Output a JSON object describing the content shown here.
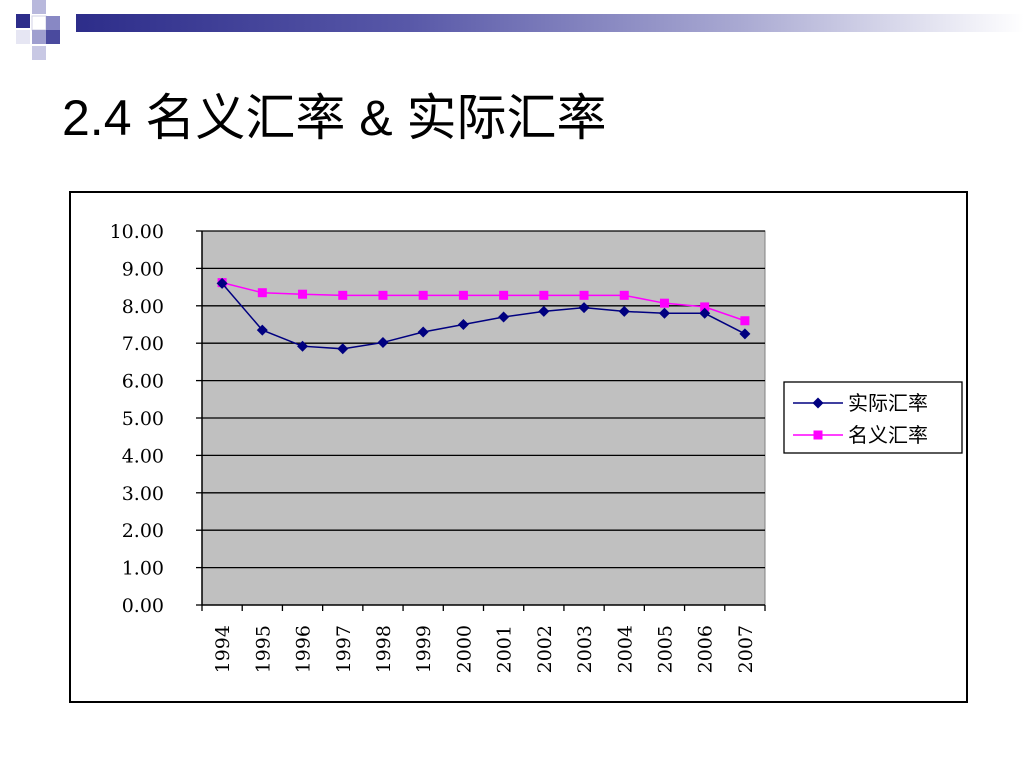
{
  "slide": {
    "title": "2.4 名义汇率 & 实际汇率"
  },
  "theme": {
    "bar_start": "#2d2d8a",
    "bar_end": "#ffffff",
    "plot_background": "#c0c0c0",
    "real_color": "#000080",
    "nominal_color": "#ff00ff"
  },
  "chart_data": {
    "type": "line",
    "title": "",
    "xlabel": "",
    "ylabel": "",
    "categories": [
      "1994",
      "1995",
      "1996",
      "1997",
      "1998",
      "1999",
      "2000",
      "2001",
      "2002",
      "2003",
      "2004",
      "2005",
      "2006",
      "2007"
    ],
    "ylim": [
      0,
      10
    ],
    "yticks": [
      "0.00",
      "1.00",
      "2.00",
      "3.00",
      "4.00",
      "5.00",
      "6.00",
      "7.00",
      "8.00",
      "9.00",
      "10.00"
    ],
    "grid": true,
    "legend_position": "right",
    "series": [
      {
        "name": "实际汇率",
        "marker": "diamond",
        "color": "#000080",
        "values": [
          8.6,
          7.35,
          6.92,
          6.85,
          7.02,
          7.3,
          7.5,
          7.7,
          7.85,
          7.95,
          7.85,
          7.8,
          7.8,
          7.25
        ]
      },
      {
        "name": "名义汇率",
        "marker": "square",
        "color": "#ff00ff",
        "values": [
          8.62,
          8.35,
          8.31,
          8.28,
          8.28,
          8.28,
          8.28,
          8.28,
          8.28,
          8.28,
          8.28,
          8.07,
          7.97,
          7.6
        ]
      }
    ]
  }
}
